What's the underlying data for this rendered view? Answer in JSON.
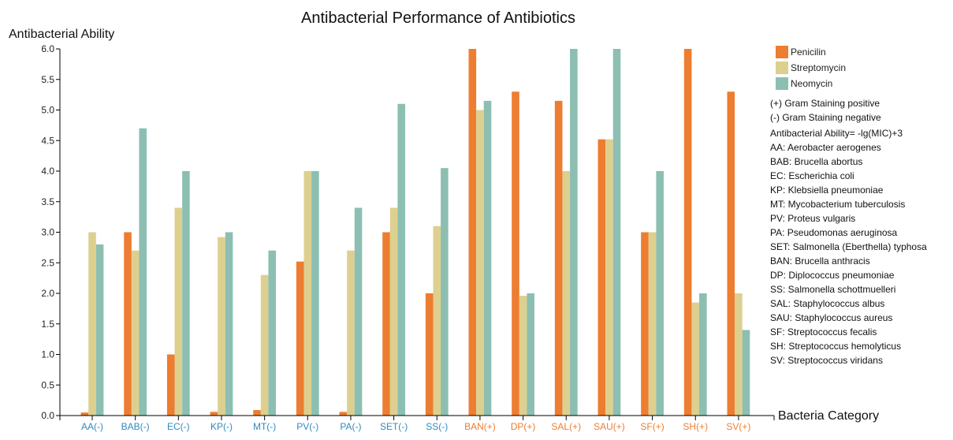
{
  "colors": {
    "penicilin": "#ED7D31",
    "streptomycin": "#DDD08F",
    "neomycin": "#8CBFB2",
    "gram_positive": "#ED7D31",
    "gram_negative": "#2E8BC0"
  },
  "chart_data": {
    "type": "bar",
    "title": "Antibacterial Performance of Antibiotics",
    "ylabel": "Antibacterial Ability",
    "xlabel": "Bacteria Category",
    "ylim": [
      0,
      6
    ],
    "yticks": [
      "0.0",
      "0.5",
      "1.0",
      "1.5",
      "2.0",
      "2.5",
      "3.0",
      "3.5",
      "4.0",
      "4.5",
      "5.0",
      "5.5",
      "6.0"
    ],
    "categories": [
      "AA(-)",
      "BAB(-)",
      "EC(-)",
      "KP(-)",
      "MT(-)",
      "PV(-)",
      "PA(-)",
      "SET(-)",
      "SS(-)",
      "BAN(+)",
      "DP(+)",
      "SAL(+)",
      "SAU(+)",
      "SF(+)",
      "SH(+)",
      "SV(+)"
    ],
    "category_gram": [
      "negative",
      "negative",
      "negative",
      "negative",
      "negative",
      "negative",
      "negative",
      "negative",
      "negative",
      "positive",
      "positive",
      "positive",
      "positive",
      "positive",
      "positive",
      "positive"
    ],
    "series": [
      {
        "name": "Penicilin",
        "color_key": "penicilin",
        "values": [
          0.05,
          3.0,
          1.0,
          0.06,
          0.09,
          2.52,
          0.06,
          3.0,
          2.0,
          6.0,
          5.3,
          5.15,
          4.52,
          3.0,
          6.0,
          5.3
        ]
      },
      {
        "name": "Streptomycin",
        "color_key": "streptomycin",
        "values": [
          3.0,
          2.7,
          3.4,
          2.92,
          2.3,
          4.0,
          2.7,
          3.4,
          3.1,
          5.0,
          1.96,
          4.0,
          4.52,
          3.0,
          1.85,
          2.0
        ]
      },
      {
        "name": "Neomycin",
        "color_key": "neomycin",
        "values": [
          2.8,
          4.7,
          4.0,
          3.0,
          2.7,
          4.0,
          3.4,
          5.1,
          4.05,
          5.15,
          2.0,
          6.0,
          6.0,
          4.0,
          2.0,
          1.4
        ]
      }
    ],
    "legend_position": "top-right",
    "grid": false
  },
  "notes": {
    "gram_positive": "(+) Gram Staining positive",
    "gram_negative": "(-) Gram Staining negative",
    "formula": "Antibacterial Ability= -lg(MIC)+3",
    "abbreviations": [
      "AA: Aerobacter aerogenes",
      "BAB: Brucella abortus",
      "EC: Escherichia coli",
      "KP: Klebsiella pneumoniae",
      "MT: Mycobacterium tuberculosis",
      "PV: Proteus vulgaris",
      "PA: Pseudomonas aeruginosa",
      "SET: Salmonella (Eberthella) typhosa",
      "BAN: Brucella anthracis",
      "DP: Diplococcus pneumoniae",
      "SS: Salmonella schottmuelleri",
      "SAL: Staphylococcus albus",
      "SAU: Staphylococcus aureus",
      "SF: Streptococcus fecalis",
      "SH: Streptococcus hemolyticus",
      "SV: Streptococcus viridans"
    ]
  }
}
